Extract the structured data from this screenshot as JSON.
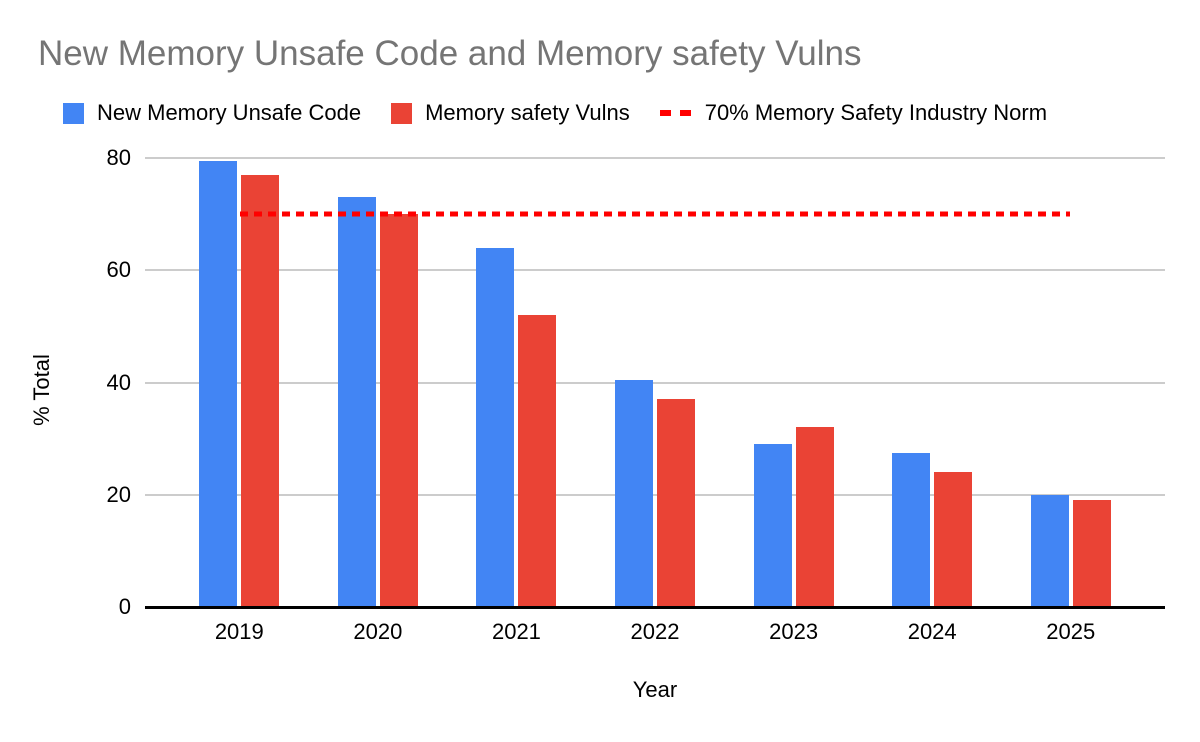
{
  "chart_data": {
    "type": "bar",
    "title": "New Memory Unsafe Code and Memory safety Vulns",
    "xlabel": "Year",
    "ylabel": "% Total",
    "categories": [
      "2019",
      "2020",
      "2021",
      "2022",
      "2023",
      "2024",
      "2025"
    ],
    "series": [
      {
        "name": "New Memory Unsafe Code",
        "color": "#4285F4",
        "values": [
          79.5,
          73,
          64,
          40.5,
          29,
          27.5,
          20
        ]
      },
      {
        "name": "Memory safety Vulns",
        "color": "#EA4335",
        "values": [
          77,
          70,
          52,
          37,
          32,
          24,
          19
        ]
      }
    ],
    "norm_line": {
      "label": "70% Memory Safety Industry Norm",
      "value": 70,
      "color": "#FF0000"
    },
    "ylim": [
      0,
      80
    ],
    "yticks": [
      0,
      20,
      40,
      60,
      80
    ],
    "grid": true,
    "legend_position": "top"
  }
}
